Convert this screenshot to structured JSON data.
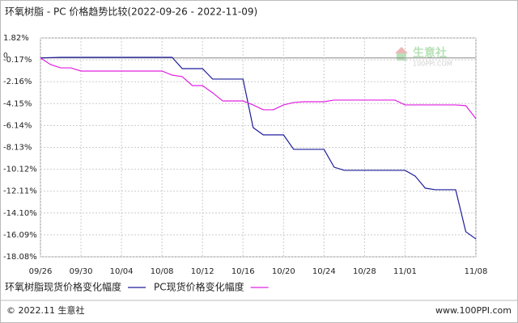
{
  "chart_data": {
    "type": "line",
    "title": "环氧树脂 - PC 价格趋势比较(2022-09-26 - 2022-11-09)",
    "categories": [
      "09/26",
      null,
      null,
      null,
      "09/30",
      null,
      null,
      null,
      "10/04",
      null,
      null,
      null,
      "10/08",
      null,
      null,
      null,
      "10/12",
      null,
      null,
      null,
      "10/16",
      null,
      null,
      null,
      "10/20",
      null,
      null,
      null,
      "10/24",
      null,
      null,
      null,
      "10/28",
      null,
      null,
      null,
      "11/01",
      null,
      null,
      null,
      null,
      null,
      null,
      "11/08"
    ],
    "series": [
      {
        "name": "环氧树脂现货价格变化幅度",
        "color": "#1c1c9a",
        "values": [
          0,
          0.03,
          0.06,
          0.06,
          0.06,
          0.06,
          0.06,
          0.06,
          0.06,
          0.06,
          0.06,
          0.06,
          0.06,
          0.06,
          -0.97,
          -0.97,
          -0.97,
          -1.92,
          -1.92,
          -1.92,
          -1.92,
          -6.33,
          -6.99,
          -6.99,
          -6.99,
          -8.31,
          -8.31,
          -8.31,
          -8.31,
          -9.93,
          -10.22,
          -10.22,
          -10.22,
          -10.22,
          -10.22,
          -10.22,
          -10.22,
          -10.74,
          -11.84,
          -11.98,
          -11.98,
          -11.98,
          -15.8,
          -16.46
        ]
      },
      {
        "name": "PC现货价格变化幅度",
        "color": "#e020e0",
        "values": [
          0,
          -0.6,
          -0.9,
          -0.9,
          -1.19,
          -1.19,
          -1.19,
          -1.19,
          -1.19,
          -1.19,
          -1.19,
          -1.19,
          -1.19,
          -1.56,
          -1.7,
          -2.51,
          -2.51,
          -3.17,
          -3.91,
          -3.91,
          -3.91,
          -4.27,
          -4.71,
          -4.71,
          -4.27,
          -4.05,
          -3.98,
          -3.98,
          -3.98,
          -3.83,
          -3.83,
          -3.83,
          -3.83,
          -3.83,
          -3.83,
          -3.83,
          -4.27,
          -4.27,
          -4.27,
          -4.27,
          -4.27,
          -4.27,
          -4.34,
          -5.52
        ]
      }
    ],
    "ylim": [
      -18.08,
      1.82
    ],
    "yticks": [
      {
        "value": 1.82,
        "label": "1.82%"
      },
      {
        "value": -0.17,
        "label": "-0.17%"
      },
      {
        "value": -2.16,
        "label": "-2.16%"
      },
      {
        "value": -4.15,
        "label": "-4.15%"
      },
      {
        "value": -6.14,
        "label": "-6.14%"
      },
      {
        "value": -8.13,
        "label": "-8.13%"
      },
      {
        "value": -10.12,
        "label": "-10.12%"
      },
      {
        "value": -12.11,
        "label": "-12.11%"
      },
      {
        "value": -14.1,
        "label": "-14.10%"
      },
      {
        "value": -16.09,
        "label": "-16.09%"
      },
      {
        "value": -18.08,
        "label": "-18.08%"
      }
    ],
    "zero_line": 0,
    "grid": true,
    "watermark": {
      "name": "生意社",
      "site": "100PPI.COM"
    },
    "footer": {
      "left": "© 2022.11 生意社",
      "right": "www.100PPI.com"
    }
  }
}
